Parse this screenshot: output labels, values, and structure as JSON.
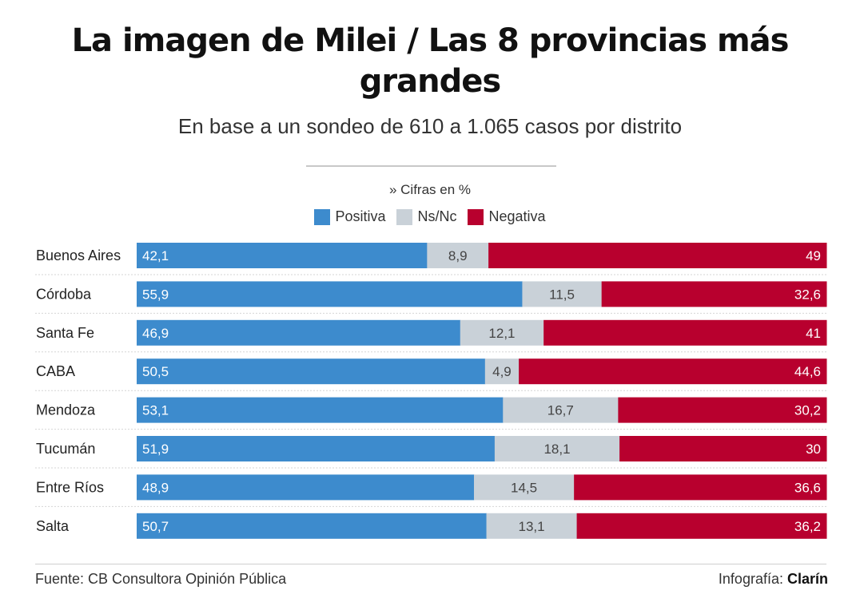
{
  "title": "La imagen de Milei / Las 8 provincias más grandes",
  "subtitle": "En base a un sondeo de 610 a 1.065 casos por distrito",
  "note": "» Cifras en %",
  "footer": {
    "source": "Fuente: CB Consultora Opinión Pública",
    "credit_prefix": "Infografía: ",
    "credit_brand": "Clarín"
  },
  "colors": {
    "positiva": "#3d8bcd",
    "nsnc": "#c9d1d8",
    "negativa": "#b8002e"
  },
  "chart_data": {
    "type": "bar",
    "orientation": "horizontal",
    "stacked": true,
    "title": "La imagen de Milei / Las 8 provincias más grandes",
    "subtitle": "En base a un sondeo de 610 a 1.065 casos por distrito",
    "unit": "%",
    "xlim": [
      0,
      100
    ],
    "legend_position": "top-center",
    "grid": false,
    "categories": [
      "Buenos Aires",
      "Córdoba",
      "Santa Fe",
      "CABA",
      "Mendoza",
      "Tucumán",
      "Entre Ríos",
      "Salta"
    ],
    "series": [
      {
        "name": "Positiva",
        "values": [
          42.1,
          55.9,
          46.9,
          50.5,
          53.1,
          51.9,
          48.9,
          50.7
        ],
        "labels": [
          "42,1",
          "55,9",
          "46,9",
          "50,5",
          "53,1",
          "51,9",
          "48,9",
          "50,7"
        ]
      },
      {
        "name": "Ns/Nc",
        "values": [
          8.9,
          11.5,
          12.1,
          4.9,
          16.7,
          18.1,
          14.5,
          13.1
        ],
        "labels": [
          "8,9",
          "11,5",
          "12,1",
          "4,9",
          "16,7",
          "18,1",
          "14,5",
          "13,1"
        ]
      },
      {
        "name": "Negativa",
        "values": [
          49,
          32.6,
          41,
          44.6,
          30.2,
          30,
          36.6,
          36.2
        ],
        "labels": [
          "49",
          "32,6",
          "41",
          "44,6",
          "30,2",
          "30",
          "36,6",
          "36,2"
        ]
      }
    ]
  }
}
